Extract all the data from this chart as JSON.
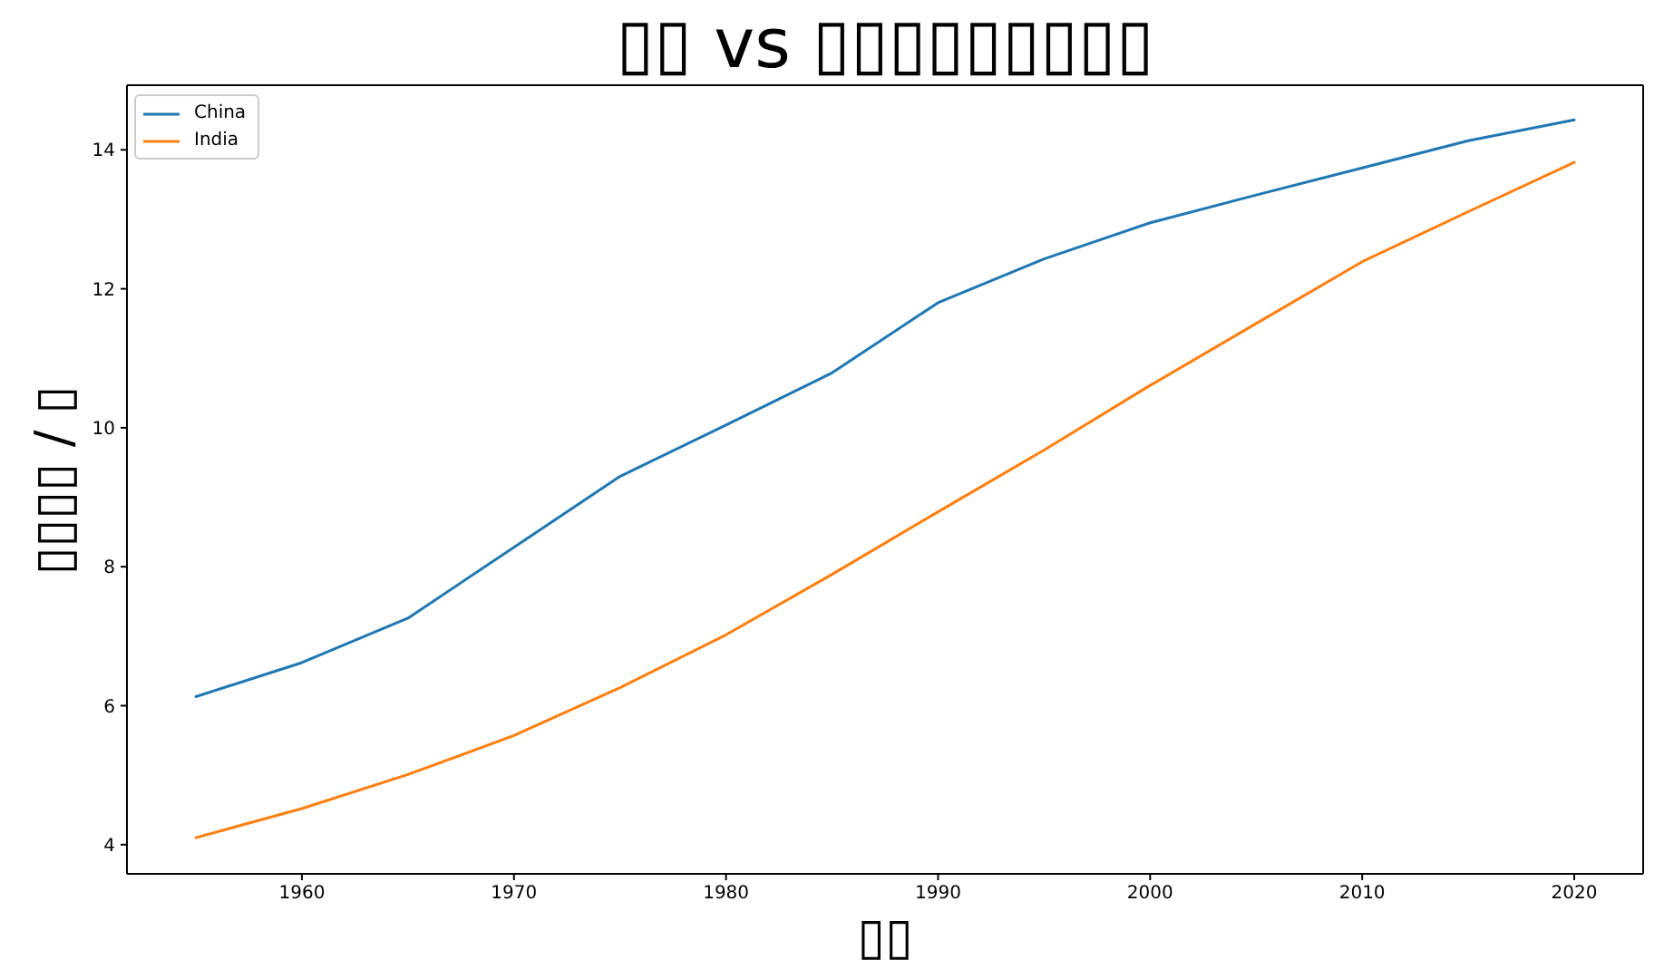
{
  "chart_data": {
    "type": "line",
    "title": "▯▯ vs ▯▯▯▯▯▯▯▯▯",
    "xlabel": "▯▯",
    "ylabel": "▯▯▯▯ / ▯",
    "x": [
      1955,
      1960,
      1965,
      1970,
      1975,
      1980,
      1985,
      1990,
      1995,
      2000,
      2005,
      2010,
      2015,
      2020
    ],
    "series": [
      {
        "name": "China",
        "color": "#1f77b4",
        "values": [
          6.13,
          6.62,
          7.26,
          8.28,
          9.3,
          10.04,
          10.79,
          11.8,
          12.43,
          12.95,
          13.35,
          13.74,
          14.13,
          14.43
        ]
      },
      {
        "name": "India",
        "color": "#ff7f0e",
        "values": [
          4.1,
          4.52,
          5.01,
          5.57,
          6.26,
          7.02,
          7.89,
          8.79,
          9.68,
          10.61,
          11.5,
          12.39,
          13.11,
          13.82
        ]
      }
    ],
    "xlim": [
      1951.75,
      2023.25
    ],
    "xticks": [
      1960,
      1970,
      1980,
      1990,
      2000,
      2010,
      2020
    ],
    "ylim": [
      3.58,
      14.93
    ],
    "yticks": [
      4,
      6,
      8,
      10,
      12,
      14
    ],
    "legend": "top left",
    "marker": "none",
    "line_style": "solid"
  }
}
